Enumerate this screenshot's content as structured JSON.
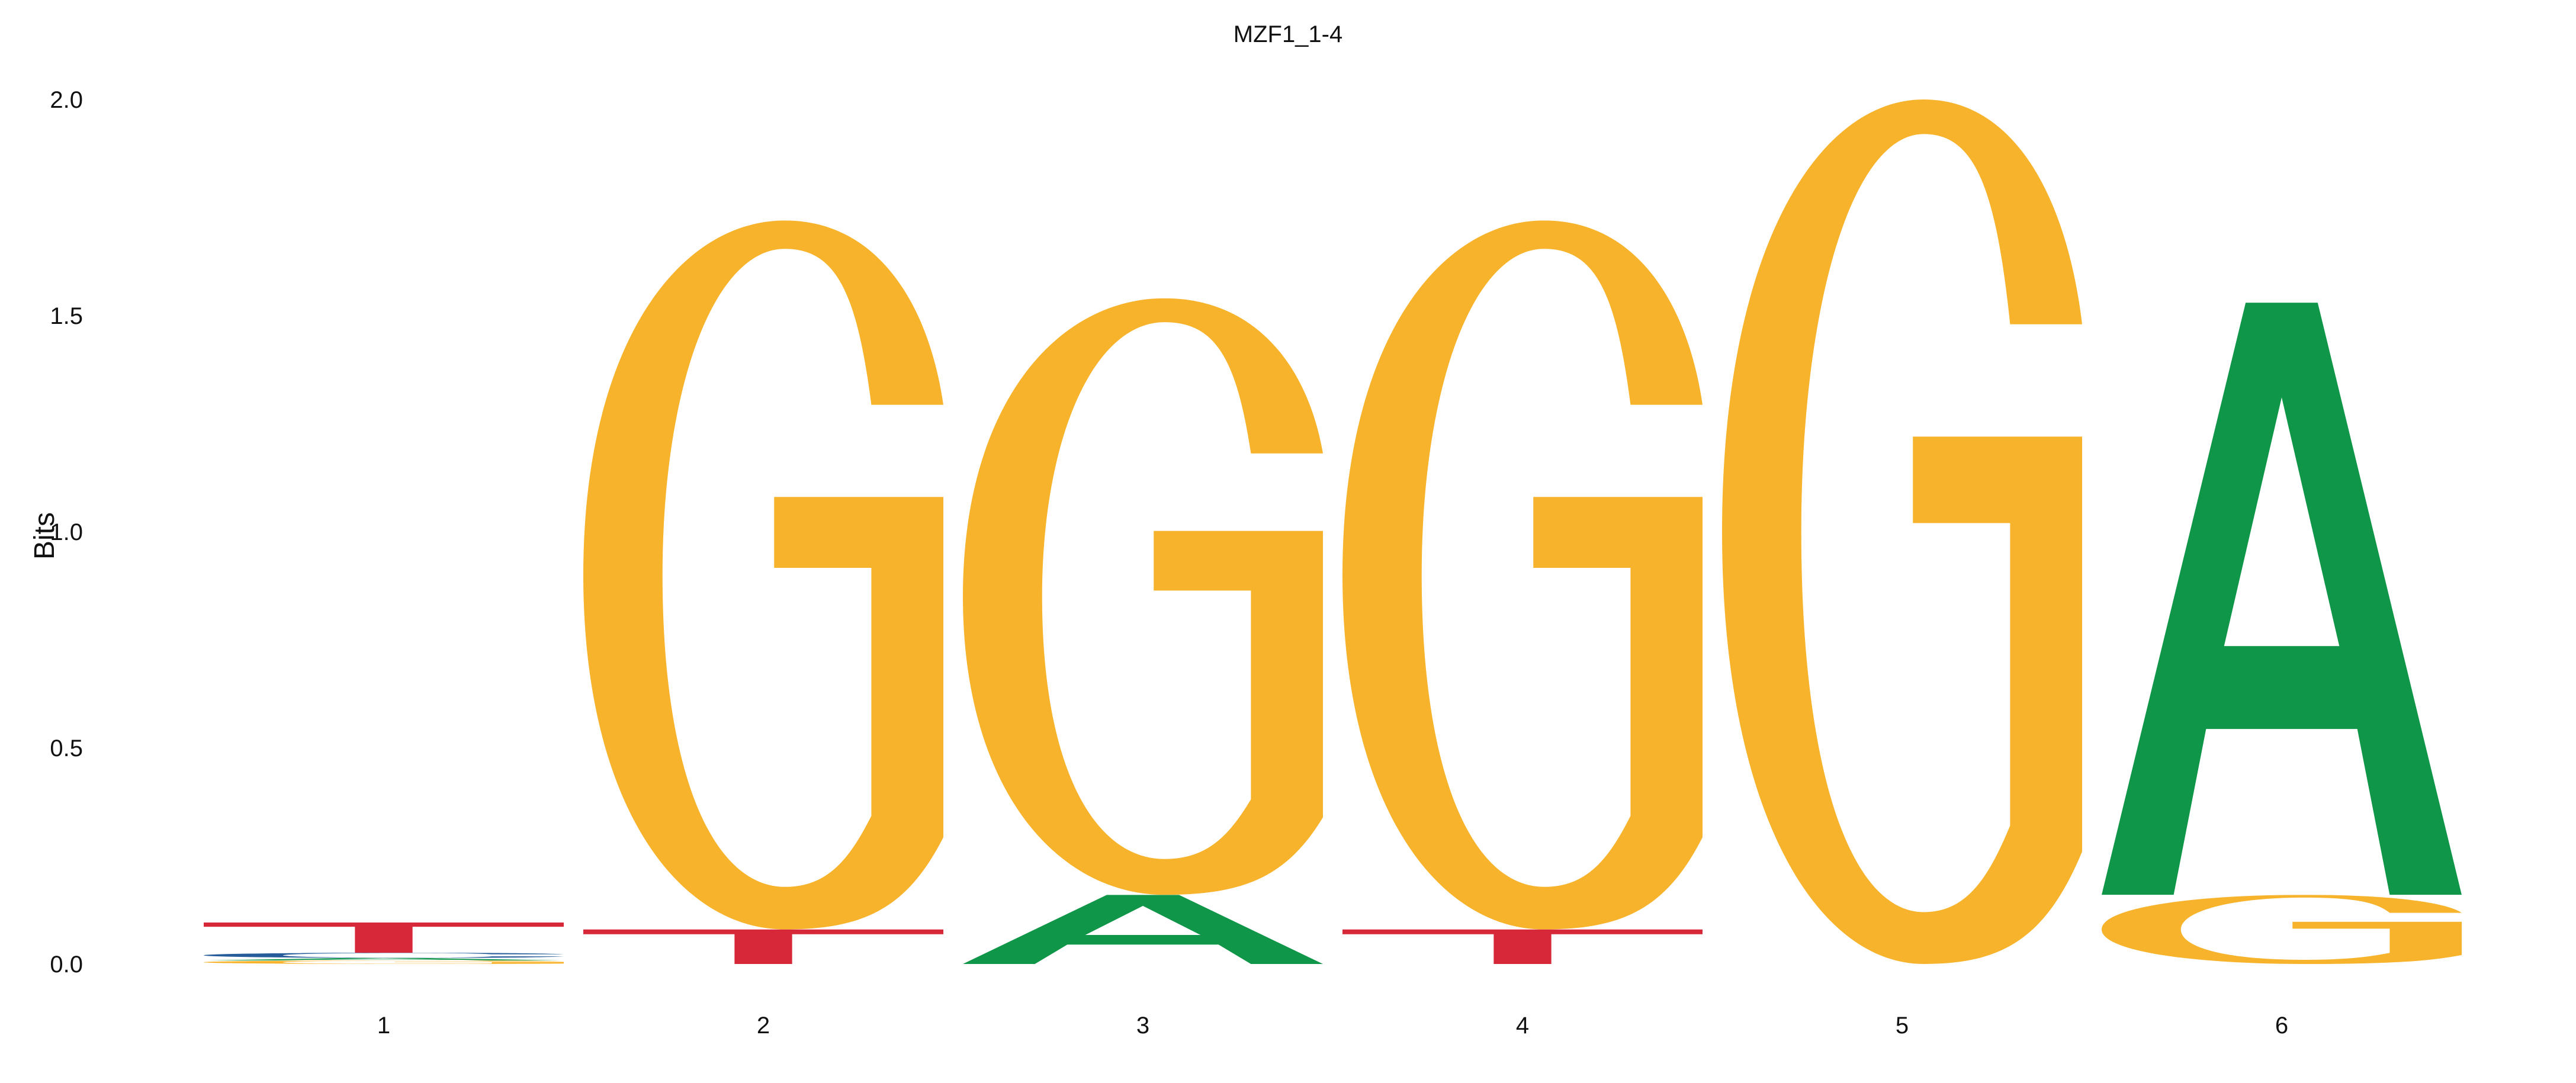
{
  "chart_data": {
    "type": "sequence-logo",
    "title": "MZF1_1-4",
    "ylabel": "Bits",
    "xlabel": "",
    "ylim": [
      0,
      2
    ],
    "yticks": [
      "0.0",
      "0.5",
      "1.0",
      "1.5",
      "2.0"
    ],
    "xticks": [
      "1",
      "2",
      "3",
      "4",
      "5",
      "6"
    ],
    "grid": false,
    "colors": {
      "A": "#109648",
      "C": "#255c99",
      "G": "#f7b32b",
      "T": "#d62839"
    },
    "positions": [
      {
        "position": "1",
        "letters": [
          {
            "letter": "G",
            "bits": 0.008
          },
          {
            "letter": "A",
            "bits": 0.006
          },
          {
            "letter": "C",
            "bits": 0.012
          },
          {
            "letter": "T",
            "bits": 0.07
          }
        ]
      },
      {
        "position": "2",
        "letters": [
          {
            "letter": "T",
            "bits": 0.08
          },
          {
            "letter": "G",
            "bits": 1.64
          }
        ]
      },
      {
        "position": "3",
        "letters": [
          {
            "letter": "A",
            "bits": 0.16
          },
          {
            "letter": "G",
            "bits": 1.38
          }
        ]
      },
      {
        "position": "4",
        "letters": [
          {
            "letter": "T",
            "bits": 0.08
          },
          {
            "letter": "G",
            "bits": 1.64
          }
        ]
      },
      {
        "position": "5",
        "letters": [
          {
            "letter": "G",
            "bits": 2.0
          }
        ]
      },
      {
        "position": "6",
        "letters": [
          {
            "letter": "G",
            "bits": 0.16
          },
          {
            "letter": "A",
            "bits": 1.37
          }
        ]
      }
    ]
  }
}
